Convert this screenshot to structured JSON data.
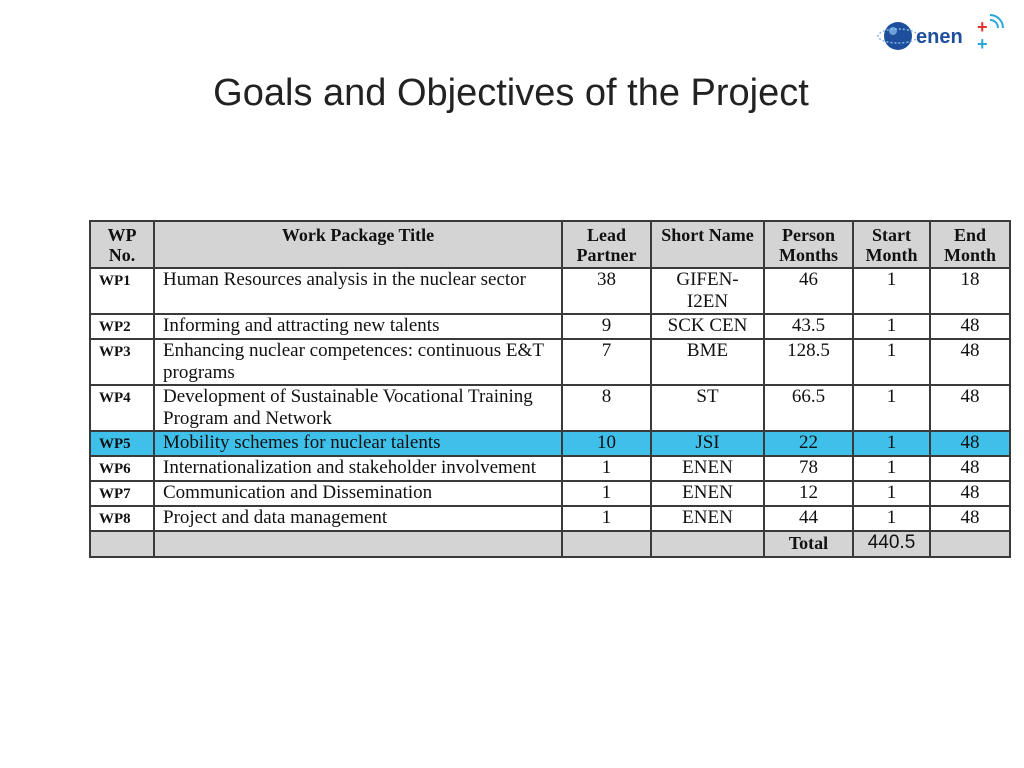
{
  "slide": {
    "title": "Goals and Objectives of the Project"
  },
  "logo": {
    "text": "enen+",
    "colors": {
      "globe": "#1e4f9c",
      "text": "#1e4f9c",
      "plus": "#e0322f",
      "signal": "#2aa7d9"
    }
  },
  "table": {
    "headers": {
      "wp_no": "WP No.",
      "title": "Work Package Title",
      "lead_partner": "Lead Partner",
      "short_name": "Short Name",
      "person_months": "Person Months",
      "start_month": "Start Month",
      "end_month": "End Month"
    },
    "rows": [
      {
        "wp": "WP1",
        "title": "Human Resources analysis in the nuclear sector",
        "lead": "38",
        "short": "GIFEN-I2EN",
        "pm": "46",
        "start": "1",
        "end": "18"
      },
      {
        "wp": "WP2",
        "title": "Informing and attracting new talents",
        "lead": "9",
        "short": "SCK CEN",
        "pm": "43.5",
        "start": "1",
        "end": "48"
      },
      {
        "wp": "WP3",
        "title": "Enhancing nuclear competences: continuous E&T programs",
        "lead": "7",
        "short": "BME",
        "pm": "128.5",
        "start": "1",
        "end": "48"
      },
      {
        "wp": "WP4",
        "title": "Development of Sustainable Vocational Training Program and Network",
        "lead": "8",
        "short": "ST",
        "pm": "66.5",
        "start": "1",
        "end": "48"
      },
      {
        "wp": "WP5",
        "title": "Mobility schemes for nuclear talents",
        "lead": "10",
        "short": "JSI",
        "pm": "22",
        "start": "1",
        "end": "48"
      },
      {
        "wp": "WP6",
        "title": "Internationalization and stakeholder involvement",
        "lead": "1",
        "short": "ENEN",
        "pm": "78",
        "start": "1",
        "end": "48"
      },
      {
        "wp": "WP7",
        "title": "Communication and Dissemination",
        "lead": "1",
        "short": "ENEN",
        "pm": "12",
        "start": "1",
        "end": "48"
      },
      {
        "wp": "WP8",
        "title": "Project and data management",
        "lead": "1",
        "short": "ENEN",
        "pm": "44",
        "start": "1",
        "end": "48"
      }
    ],
    "highlighted_row": "WP5",
    "highlight_color": "#3fc0ea",
    "total": {
      "label": "Total",
      "value": "440.5"
    }
  }
}
